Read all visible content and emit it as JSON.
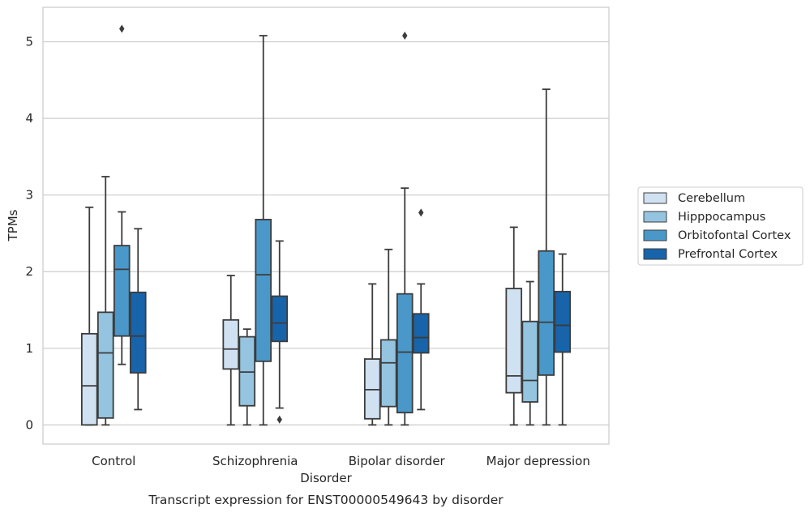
{
  "chart_data": {
    "type": "box",
    "title": "Transcript expression for ENST00000549643 by disorder",
    "xlabel": "Disorder",
    "ylabel": "TPMs",
    "ylim": [
      -0.25,
      5.45
    ],
    "yticks": [
      0,
      1,
      2,
      3,
      4,
      5
    ],
    "grid": true,
    "legend_position": "right-center",
    "categories": [
      "Control",
      "Schizophrenia",
      "Bipolar disorder",
      "Major depression"
    ],
    "series": [
      {
        "name": "Cerebellum",
        "color": "#d0e1f2",
        "boxes": [
          {
            "whislo": 0.0,
            "q1": 0.0,
            "med": 0.51,
            "q3": 1.19,
            "whishi": 2.84,
            "fliers": []
          },
          {
            "whislo": 0.0,
            "q1": 0.73,
            "med": 0.99,
            "q3": 1.37,
            "whishi": 1.95,
            "fliers": []
          },
          {
            "whislo": 0.0,
            "q1": 0.08,
            "med": 0.46,
            "q3": 0.86,
            "whishi": 1.84,
            "fliers": []
          },
          {
            "whislo": 0.0,
            "q1": 0.42,
            "med": 0.64,
            "q3": 1.78,
            "whishi": 2.58,
            "fliers": []
          }
        ]
      },
      {
        "name": "Hipppocampus",
        "color": "#94c4df",
        "boxes": [
          {
            "whislo": 0.0,
            "q1": 0.09,
            "med": 0.94,
            "q3": 1.47,
            "whishi": 3.24,
            "fliers": []
          },
          {
            "whislo": 0.0,
            "q1": 0.25,
            "med": 0.69,
            "q3": 1.15,
            "whishi": 1.25,
            "fliers": []
          },
          {
            "whislo": 0.0,
            "q1": 0.24,
            "med": 0.81,
            "q3": 1.11,
            "whishi": 2.29,
            "fliers": []
          },
          {
            "whislo": 0.0,
            "q1": 0.3,
            "med": 0.58,
            "q3": 1.35,
            "whishi": 1.87,
            "fliers": []
          }
        ]
      },
      {
        "name": "Orbitofontal Cortex",
        "color": "#4a98c9",
        "boxes": [
          {
            "whislo": 0.79,
            "q1": 1.16,
            "med": 2.03,
            "q3": 2.34,
            "whishi": 2.78,
            "fliers": [
              5.17
            ]
          },
          {
            "whislo": 0.0,
            "q1": 0.83,
            "med": 1.96,
            "q3": 2.68,
            "whishi": 5.08,
            "fliers": []
          },
          {
            "whislo": 0.0,
            "q1": 0.16,
            "med": 0.95,
            "q3": 1.71,
            "whishi": 3.09,
            "fliers": [
              5.08
            ]
          },
          {
            "whislo": 0.0,
            "q1": 0.65,
            "med": 1.34,
            "q3": 2.27,
            "whishi": 4.38,
            "fliers": []
          }
        ]
      },
      {
        "name": "Prefrontal Cortex",
        "color": "#1764ab",
        "boxes": [
          {
            "whislo": 0.2,
            "q1": 0.68,
            "med": 1.16,
            "q3": 1.73,
            "whishi": 2.56,
            "fliers": []
          },
          {
            "whislo": 0.22,
            "q1": 1.09,
            "med": 1.33,
            "q3": 1.68,
            "whishi": 2.4,
            "fliers": [
              0.07
            ]
          },
          {
            "whislo": 0.2,
            "q1": 0.94,
            "med": 1.14,
            "q3": 1.45,
            "whishi": 1.84,
            "fliers": [
              2.77
            ]
          },
          {
            "whislo": 0.0,
            "q1": 0.95,
            "med": 1.3,
            "q3": 1.74,
            "whishi": 2.23,
            "fliers": []
          }
        ]
      }
    ]
  }
}
